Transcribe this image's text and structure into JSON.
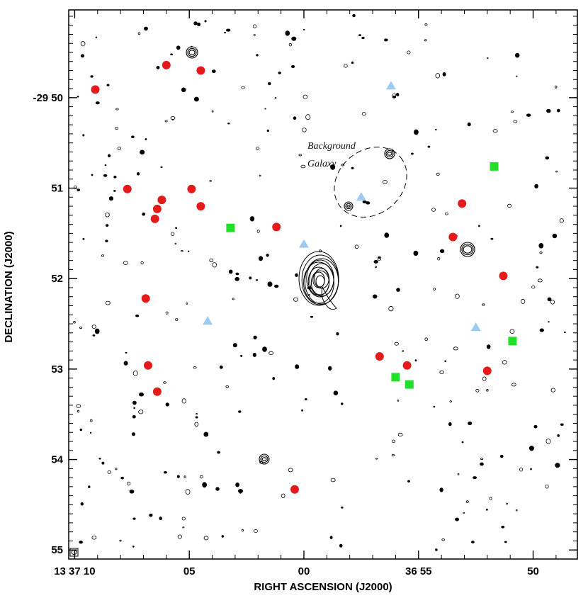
{
  "chart_data": {
    "type": "scatter",
    "xlabel": "RIGHT ASCENSION (J2000)",
    "ylabel": "DECLINATION (J2000)",
    "x_ticks": [
      {
        "value": 13,
        "label": "13 37 10"
      },
      {
        "value": 8,
        "label": "05"
      },
      {
        "value": 3,
        "label": "00"
      },
      {
        "value": -2,
        "label": "36 55"
      },
      {
        "value": -7,
        "label": "50"
      }
    ],
    "y_ticks": [
      {
        "value": 50,
        "label": "-29 50"
      },
      {
        "value": 51,
        "label": "51"
      },
      {
        "value": 52,
        "label": "52"
      },
      {
        "value": 53,
        "label": "53"
      },
      {
        "value": 54,
        "label": "54"
      },
      {
        "value": 55,
        "label": "55"
      }
    ],
    "xlim": [
      13.26,
      -8.93
    ],
    "ylim": [
      55.1,
      49.03
    ],
    "grid": false,
    "annotation": [
      "Background",
      "Galaxy"
    ],
    "colors": {
      "red": "#e51b1b",
      "green": "#22e02a",
      "blue": "#9ecaf0",
      "contour": "#000000"
    },
    "series": [
      {
        "marker": "circle",
        "color": "red",
        "points": [
          {
            "x": 12.1,
            "y": 49.91
          },
          {
            "x": 10.7,
            "y": 51.01
          },
          {
            "x": 9.9,
            "y": 52.22
          },
          {
            "x": 9.8,
            "y": 52.96
          },
          {
            "x": 9.4,
            "y": 53.25
          },
          {
            "x": 9.5,
            "y": 51.34
          },
          {
            "x": 9.4,
            "y": 51.23
          },
          {
            "x": 9.2,
            "y": 51.13
          },
          {
            "x": 9.0,
            "y": 49.64
          },
          {
            "x": 7.9,
            "y": 51.01
          },
          {
            "x": 7.5,
            "y": 49.7
          },
          {
            "x": 7.5,
            "y": 51.2
          },
          {
            "x": 4.2,
            "y": 51.43
          },
          {
            "x": 3.4,
            "y": 54.33
          },
          {
            "x": -0.3,
            "y": 52.86
          },
          {
            "x": -1.5,
            "y": 52.96
          },
          {
            "x": -3.5,
            "y": 51.54
          },
          {
            "x": -3.9,
            "y": 51.17
          },
          {
            "x": -5.7,
            "y": 51.97
          },
          {
            "x": -5.0,
            "y": 53.02
          }
        ]
      },
      {
        "marker": "square",
        "color": "green",
        "points": [
          {
            "x": 6.2,
            "y": 51.44
          },
          {
            "x": -1.0,
            "y": 53.09
          },
          {
            "x": -1.6,
            "y": 53.17
          },
          {
            "x": -5.3,
            "y": 50.76
          },
          {
            "x": -6.1,
            "y": 52.69
          }
        ]
      },
      {
        "marker": "triangle",
        "color": "blue",
        "points": [
          {
            "x": 0.5,
            "y": 51.1
          },
          {
            "x": 3.0,
            "y": 51.62
          },
          {
            "x": 7.2,
            "y": 52.47
          },
          {
            "x": -0.8,
            "y": 49.87
          },
          {
            "x": -4.5,
            "y": 52.54
          }
        ]
      }
    ]
  }
}
